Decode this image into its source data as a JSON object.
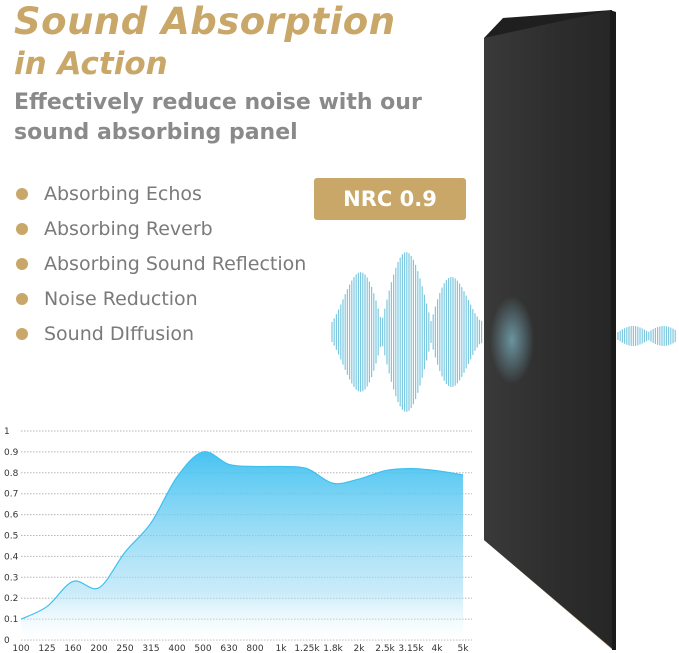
{
  "header": {
    "title_line1": "Sound Absorption",
    "title_line2": "in Action",
    "subtitle": "Effectively reduce noise with our sound absorbing panel"
  },
  "features": [
    "Absorbing Echos",
    "Absorbing Reverb",
    "Absorbing Sound Reflection",
    "Noise Reduction",
    "Sound DIffusion"
  ],
  "badge": {
    "label": "NRC 0.9"
  },
  "colors": {
    "accent": "#c9a768",
    "panel": "#2c2c2c",
    "wave": "#6fc3dd",
    "curve": "#3ec0f0"
  },
  "chart_data": {
    "type": "area",
    "title": "",
    "xlabel": "",
    "ylabel": "",
    "categories": [
      "100",
      "125",
      "160",
      "200",
      "250",
      "315",
      "400",
      "500",
      "630",
      "800",
      "1k",
      "1.25k",
      "1.8k",
      "2k",
      "2.5k",
      "3.15k",
      "4k",
      "5k"
    ],
    "values": [
      0.1,
      0.16,
      0.28,
      0.25,
      0.42,
      0.56,
      0.78,
      0.9,
      0.84,
      0.83,
      0.83,
      0.82,
      0.75,
      0.77,
      0.81,
      0.82,
      0.81,
      0.79
    ],
    "yticks": [
      "0",
      "0.1",
      "0.2",
      "0.3",
      "0.4",
      "0.5",
      "0.6",
      "0.7",
      "0.8",
      "0.9",
      "1"
    ],
    "ylim": [
      0,
      1
    ],
    "grid": true
  }
}
